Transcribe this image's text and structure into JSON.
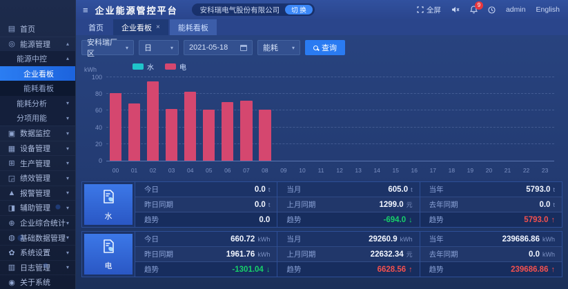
{
  "app": {
    "title": "企业能源管控平台",
    "hamburger_icon": "menu-toggle-icon",
    "company": "安科瑞电气股份有限公司",
    "switch_label": "切 换"
  },
  "header_right": {
    "fullscreen_label": "全屏",
    "notification_badge": "9",
    "username": "admin",
    "language": "English"
  },
  "tabs": [
    {
      "label": "首页",
      "closable": false,
      "active": false
    },
    {
      "label": "企业看板",
      "closable": true,
      "active": true
    },
    {
      "label": "能耗看板",
      "closable": false,
      "active": false
    }
  ],
  "filters": {
    "area": "安科瑞厂区",
    "period": "日",
    "date": "2021-05-18",
    "type": "能耗",
    "query_label": "查询"
  },
  "sidebar": {
    "items": [
      {
        "id": "home",
        "label": "首页",
        "level": 0,
        "icon": "home-icon",
        "glyph": "▤"
      },
      {
        "id": "energy-management",
        "label": "能源管理",
        "level": 0,
        "icon": "energy-icon",
        "glyph": "◎",
        "caret": "up"
      },
      {
        "id": "energy-center",
        "label": "能源中控",
        "level": 1,
        "caret": "up"
      },
      {
        "id": "enterprise-board",
        "label": "企业看板",
        "level": 2,
        "active": true
      },
      {
        "id": "energy-board",
        "label": "能耗看板",
        "level": 2
      },
      {
        "id": "energy-analysis",
        "label": "能耗分析",
        "level": 1,
        "caret": "down"
      },
      {
        "id": "sub-item-energy",
        "label": "分项用能",
        "level": 1,
        "caret": "down"
      },
      {
        "id": "data-monitor",
        "label": "数据监控",
        "level": 0,
        "icon": "monitor-icon",
        "glyph": "▣",
        "caret": "down"
      },
      {
        "id": "device-management",
        "label": "设备管理",
        "level": 0,
        "icon": "device-icon",
        "glyph": "▦",
        "caret": "down"
      },
      {
        "id": "production-management",
        "label": "生产管理",
        "level": 0,
        "icon": "production-icon",
        "glyph": "⊞",
        "caret": "down"
      },
      {
        "id": "performance-management",
        "label": "绩效管理",
        "level": 0,
        "icon": "performance-icon",
        "glyph": "◲",
        "caret": "down"
      },
      {
        "id": "alarm-management",
        "label": "报警管理",
        "level": 0,
        "icon": "alarm-icon",
        "glyph": "▲",
        "caret": "down"
      },
      {
        "id": "auxiliary-management",
        "label": "辅助管理",
        "level": 0,
        "icon": "auxiliary-icon",
        "glyph": "◨",
        "caret": "down"
      },
      {
        "id": "enterprise-statistics",
        "label": "企业综合统计",
        "level": 0,
        "icon": "statistics-icon",
        "glyph": "⊕",
        "caret": "down"
      },
      {
        "id": "basic-data-management",
        "label": "基础数据管理",
        "level": 0,
        "icon": "database-icon",
        "glyph": "◍",
        "caret": "down"
      },
      {
        "id": "system-settings",
        "label": "系统设置",
        "level": 0,
        "icon": "settings-icon",
        "glyph": "✿",
        "caret": "down"
      },
      {
        "id": "log-management",
        "label": "日志管理",
        "level": 0,
        "icon": "log-icon",
        "glyph": "▥",
        "caret": "down"
      },
      {
        "id": "about-system",
        "label": "关于系统",
        "level": 0,
        "icon": "about-icon",
        "glyph": "◉"
      }
    ]
  },
  "chart_data": {
    "type": "bar",
    "title": "",
    "ylabel": "kWh",
    "xlabel": "",
    "ylim": [
      0,
      100
    ],
    "yticks": [
      0,
      20,
      40,
      60,
      80,
      100
    ],
    "grid": true,
    "legend_position": "top-left",
    "x": [
      "00",
      "01",
      "02",
      "03",
      "04",
      "05",
      "06",
      "07",
      "08",
      "09",
      "10",
      "11",
      "12",
      "13",
      "14",
      "15",
      "16",
      "17",
      "18",
      "19",
      "20",
      "21",
      "22",
      "23"
    ],
    "series": [
      {
        "name": "水",
        "color": "#1fc4ca",
        "values": [
          0,
          0,
          0,
          0,
          0,
          0,
          0,
          0,
          0,
          0,
          0,
          0,
          0,
          0,
          0,
          0,
          0,
          0,
          0,
          0,
          0,
          0,
          0,
          0
        ]
      },
      {
        "name": "电",
        "color": "#d5476f",
        "values": [
          81,
          69,
          95,
          62,
          83,
          61,
          70,
          72,
          61,
          0,
          0,
          0,
          0,
          0,
          0,
          0,
          0,
          0,
          0,
          0,
          0,
          0,
          0,
          0
        ]
      }
    ]
  },
  "stats": {
    "rows": [
      {
        "id": "water",
        "label": "水",
        "groups": [
          {
            "cells": [
              {
                "label": "今日",
                "value": "0.0",
                "unit": "t"
              },
              {
                "label": "昨日同期",
                "value": "0.0",
                "unit": "t"
              },
              {
                "label": "趋势",
                "value": "0.0",
                "unit": "",
                "trend": "none"
              }
            ]
          },
          {
            "cells": [
              {
                "label": "当月",
                "value": "605.0",
                "unit": "t"
              },
              {
                "label": "上月同期",
                "value": "1299.0",
                "unit": "元"
              },
              {
                "label": "趋势",
                "value": "-694.0",
                "unit": "",
                "trend": "down"
              }
            ]
          },
          {
            "cells": [
              {
                "label": "当年",
                "value": "5793.0",
                "unit": "t"
              },
              {
                "label": "去年同期",
                "value": "0.0",
                "unit": "t"
              },
              {
                "label": "趋势",
                "value": "5793.0",
                "unit": "",
                "trend": "up"
              }
            ]
          }
        ]
      },
      {
        "id": "electricity",
        "label": "电",
        "groups": [
          {
            "cells": [
              {
                "label": "今日",
                "value": "660.72",
                "unit": "kWh"
              },
              {
                "label": "昨日同期",
                "value": "1961.76",
                "unit": "kWh"
              },
              {
                "label": "趋势",
                "value": "-1301.04",
                "unit": "",
                "trend": "down"
              }
            ]
          },
          {
            "cells": [
              {
                "label": "当月",
                "value": "29260.9",
                "unit": "kWh"
              },
              {
                "label": "上月同期",
                "value": "22632.34",
                "unit": "元"
              },
              {
                "label": "趋势",
                "value": "6628.56",
                "unit": "",
                "trend": "up"
              }
            ]
          },
          {
            "cells": [
              {
                "label": "当年",
                "value": "239686.86",
                "unit": "kWh"
              },
              {
                "label": "去年同期",
                "value": "0.0",
                "unit": "kWh"
              },
              {
                "label": "趋势",
                "value": "239686.86",
                "unit": "",
                "trend": "up"
              }
            ]
          }
        ]
      }
    ]
  }
}
